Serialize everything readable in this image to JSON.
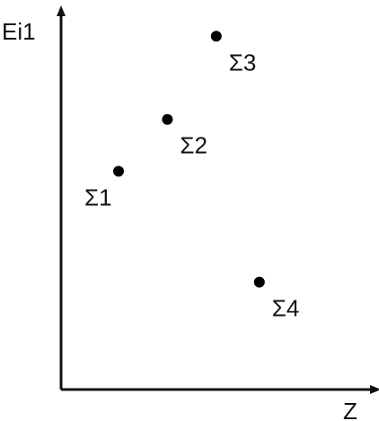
{
  "chart_data": {
    "type": "scatter",
    "xlabel": "Z",
    "ylabel": "Ei1",
    "xlim": [
      0,
      10
    ],
    "ylim": [
      0,
      10
    ],
    "grid": false,
    "axis_ticks": false,
    "points": [
      {
        "label": "Σ1",
        "x": 2.0,
        "y": 6.3
      },
      {
        "label": "Σ2",
        "x": 3.7,
        "y": 7.8
      },
      {
        "label": "Σ3",
        "x": 5.4,
        "y": 10.2
      },
      {
        "label": "Σ4",
        "x": 6.9,
        "y": 3.1
      }
    ],
    "colors": {
      "axis": "#111111",
      "marker": "#000000"
    }
  }
}
